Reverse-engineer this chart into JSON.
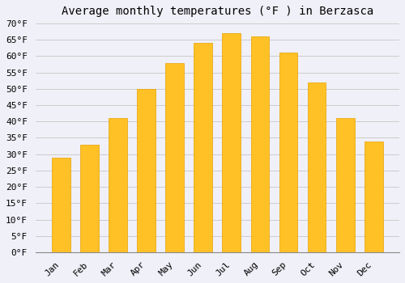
{
  "title": "Average monthly temperatures (°F ) in Berzasca",
  "months": [
    "Jan",
    "Feb",
    "Mar",
    "Apr",
    "May",
    "Jun",
    "Jul",
    "Aug",
    "Sep",
    "Oct",
    "Nov",
    "Dec"
  ],
  "values": [
    29,
    33,
    41,
    50,
    58,
    64,
    67,
    66,
    61,
    52,
    41,
    34
  ],
  "bar_color": "#FFC125",
  "bar_edge_color": "#E8A000",
  "ylim": [
    0,
    70
  ],
  "ytick_step": 5,
  "background_color": "#f0f0f8",
  "plot_bg_color": "#f0f0f8",
  "grid_color": "#cccccc",
  "title_fontsize": 10,
  "tick_fontsize": 8,
  "ylabel_suffix": "°F"
}
